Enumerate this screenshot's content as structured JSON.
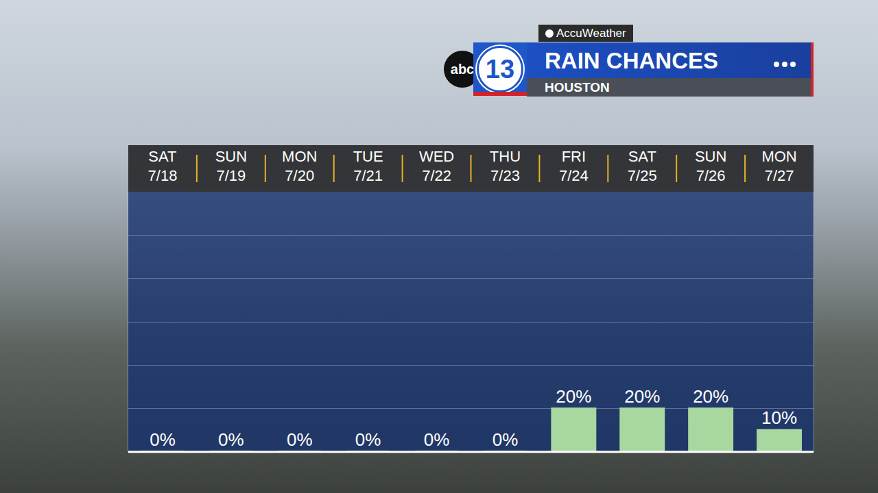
{
  "chart_data": {
    "type": "bar",
    "title": "RAIN CHANCES",
    "subtitle": "HOUSTON",
    "branding": {
      "provider": "AccuWeather",
      "network": "abc",
      "channel": "13"
    },
    "categories": [
      "SAT 7/18",
      "SUN 7/19",
      "MON 7/20",
      "TUE 7/21",
      "WED 7/22",
      "THU 7/23",
      "FRI 7/24",
      "SAT 7/25",
      "SUN 7/26",
      "MON 7/27"
    ],
    "values": [
      0,
      0,
      0,
      0,
      0,
      0,
      20,
      20,
      20,
      10
    ],
    "value_labels": [
      "0%",
      "0%",
      "0%",
      "0%",
      "0%",
      "0%",
      "20%",
      "20%",
      "20%",
      "10%"
    ],
    "color": "#a8d8a0",
    "ylim": [
      0,
      120
    ],
    "yticks": [
      20,
      40,
      60,
      80,
      100
    ],
    "grid": true,
    "data_labels": true,
    "tick_labels": "x"
  }
}
